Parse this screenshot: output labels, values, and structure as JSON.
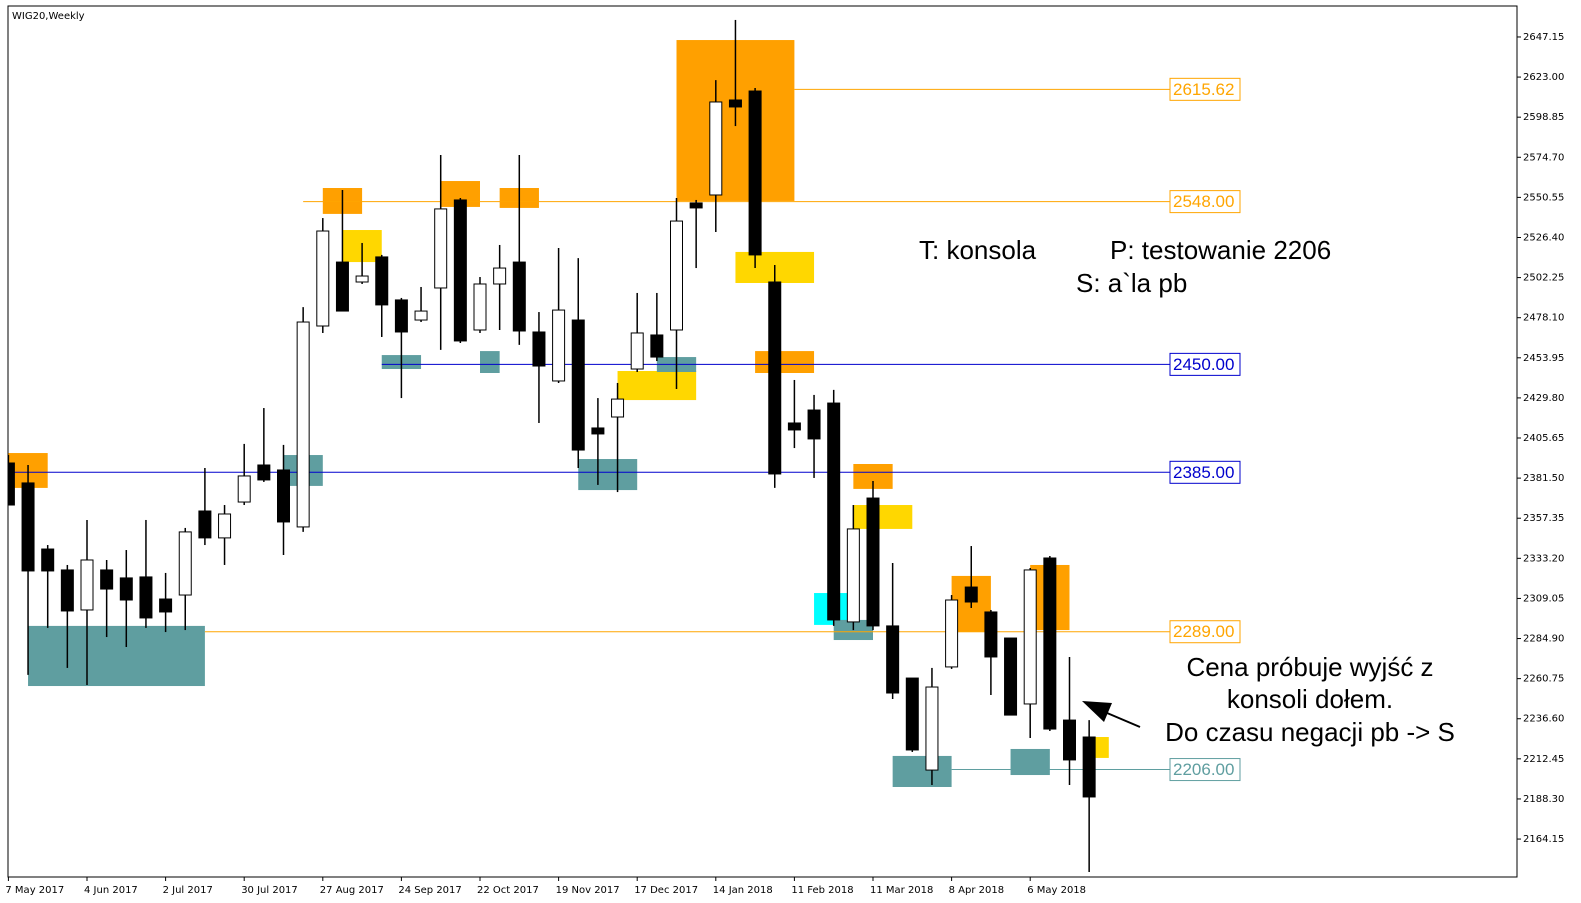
{
  "chart_data": {
    "type": "candlestick",
    "title": "WIG20,Weekly",
    "categories": [
      "7 May 2017",
      null,
      null,
      null,
      "4 Jun 2017",
      null,
      null,
      null,
      "2 Jul 2017",
      null,
      null,
      null,
      "30 Jul 2017",
      null,
      null,
      null,
      "27 Aug 2017",
      null,
      null,
      null,
      "24 Sep 2017",
      null,
      null,
      null,
      "22 Oct 2017",
      null,
      null,
      null,
      "19 Nov 2017",
      null,
      null,
      null,
      "17 Dec 2017",
      null,
      null,
      null,
      "14 Jan 2018",
      null,
      null,
      null,
      "11 Feb 2018",
      null,
      null,
      null,
      "11 Mar 2018",
      null,
      null,
      null,
      "8 Apr 2018",
      null,
      null,
      null,
      "6 May 2018",
      null,
      null,
      null
    ],
    "open": [
      2390.6,
      2378.6,
      2338.8,
      2326.2,
      2302.1,
      2326.2,
      2321.4,
      2322.0,
      2308.7,
      2311.1,
      2361.7,
      2345.5,
      2367.1,
      2389.4,
      2386.4,
      2352.1,
      2473.1,
      2511.6,
      2499.6,
      2514.7,
      2488.8,
      2476.7,
      2496.0,
      2549.0,
      2470.7,
      2498.4,
      2511.6,
      2469.5,
      2440.0,
      2476.7,
      2411.7,
      2418.3,
      2447.2,
      2467.7,
      2470.7,
      2547.2,
      2552.0,
      2609.2,
      2614.6,
      2499.6,
      2414.7,
      2422.5,
      2426.7,
      2294.9,
      2369.5,
      2292.5,
      2261.1,
      2205.7,
      2267.8,
      2315.9,
      2300.9,
      2285.2,
      2245.5,
      2333.4,
      2235.8,
      2225.6
    ],
    "high": [
      2395.4,
      2389.4,
      2341.2,
      2329.2,
      2356.3,
      2332.2,
      2338.2,
      2356.3,
      2324.4,
      2351.5,
      2387.6,
      2365.3,
      2402.1,
      2423.7,
      2401.5,
      2484.5,
      2538.1,
      2555.0,
      2523.1,
      2515.9,
      2490.0,
      2496.6,
      2576.1,
      2550.2,
      2502.6,
      2521.9,
      2576.1,
      2481.5,
      2520.1,
      2514.0,
      2429.7,
      2438.8,
      2493.0,
      2493.0,
      2550.2,
      2549.0,
      2621.2,
      2657.4,
      2616.4,
      2509.8,
      2440.6,
      2431.6,
      2434.6,
      2365.3,
      2379.8,
      2330.4,
      2261.1,
      2267.2,
      2311.1,
      2340.6,
      2302.1,
      2285.2,
      2327.4,
      2334.6,
      2273.8,
      2235.8
    ],
    "low": [
      2365.3,
      2263.0,
      2291.3,
      2267.2,
      2256.9,
      2285.8,
      2279.8,
      2291.3,
      2288.8,
      2290.0,
      2341.2,
      2329.2,
      2365.3,
      2379.2,
      2335.2,
      2349.1,
      2468.9,
      2482.1,
      2498.4,
      2466.5,
      2429.7,
      2475.5,
      2458.7,
      2462.9,
      2468.9,
      2470.7,
      2461.7,
      2414.7,
      2438.8,
      2387.6,
      2377.4,
      2373.1,
      2445.4,
      2452.0,
      2435.2,
      2508.0,
      2529.7,
      2593.5,
      2508.0,
      2375.6,
      2399.6,
      2381.6,
      2292.5,
      2290.0,
      2290.0,
      2248.5,
      2216.6,
      2196.7,
      2266.6,
      2303.3,
      2250.9,
      2238.8,
      2225.0,
      2229.2,
      2196.7,
      2144.3
    ],
    "close": [
      2365.3,
      2325.6,
      2325.6,
      2301.5,
      2332.2,
      2314.7,
      2308.1,
      2297.3,
      2300.9,
      2349.1,
      2345.5,
      2359.9,
      2382.8,
      2380.4,
      2355.1,
      2475.5,
      2530.3,
      2482.1,
      2503.2,
      2485.8,
      2469.5,
      2482.1,
      2543.6,
      2464.1,
      2498.4,
      2508.0,
      2470.1,
      2449.0,
      2482.7,
      2398.4,
      2408.1,
      2429.1,
      2468.9,
      2454.4,
      2536.3,
      2544.2,
      2608.0,
      2605.0,
      2515.9,
      2384.0,
      2410.5,
      2405.1,
      2296.1,
      2350.9,
      2292.5,
      2252.1,
      2217.8,
      2255.7,
      2308.1,
      2306.9,
      2273.8,
      2238.8,
      2326.2,
      2230.4,
      2211.8,
      2189.5
    ],
    "bull_color": "#ffffff",
    "bear_color": "#000000",
    "ylim": [
      2141.3,
      2665.8
    ],
    "yticks": [
      2647.15,
      {
        "value": 2623.0,
        "label": "2623.00"
      },
      2598.85,
      {
        "value": 2574.7,
        "label": "2574.70"
      },
      2550.55,
      {
        "value": 2526.4,
        "label": "2526.40"
      },
      2502.25,
      {
        "value": 2478.1,
        "label": "2478.10"
      },
      2453.95,
      {
        "value": 2429.8,
        "label": "2429.80"
      },
      2405.65,
      {
        "value": 2381.5,
        "label": "2381.50"
      },
      2357.35,
      {
        "value": 2333.2,
        "label": "2333.20"
      },
      2309.05,
      {
        "value": 2284.9,
        "label": "2284.90"
      },
      2260.75,
      {
        "value": 2236.6,
        "label": "2236.60"
      },
      2212.45,
      {
        "value": 2188.3,
        "label": "2188.30"
      },
      2164.15
    ],
    "zones": [
      {
        "start": 0,
        "end": 2,
        "top": 2396.6,
        "bottom": 2375.6,
        "color": "#ffa000"
      },
      {
        "start": 1,
        "end": 10,
        "top": 2292.5,
        "bottom": 2256.3,
        "color": "#5f9ea0"
      },
      {
        "start": 14,
        "end": 16,
        "top": 2395.4,
        "bottom": 2376.8,
        "color": "#5f9ea0"
      },
      {
        "start": 16,
        "end": 18,
        "top": 2556.2,
        "bottom": 2540.6,
        "color": "#ffa000"
      },
      {
        "start": 17,
        "end": 19,
        "top": 2530.9,
        "bottom": 2511.6,
        "color": "#ffd700"
      },
      {
        "start": 19,
        "end": 21,
        "top": 2455.6,
        "bottom": 2447.2,
        "color": "#5f9ea0"
      },
      {
        "start": 22,
        "end": 24,
        "top": 2560.4,
        "bottom": 2544.8,
        "color": "#ffa000"
      },
      {
        "start": 24,
        "end": 25,
        "top": 2458.0,
        "bottom": 2444.8,
        "color": "#5f9ea0"
      },
      {
        "start": 25,
        "end": 27,
        "top": 2556.2,
        "bottom": 2544.2,
        "color": "#ffa000"
      },
      {
        "start": 29,
        "end": 32,
        "top": 2393.0,
        "bottom": 2374.3,
        "color": "#5f9ea0"
      },
      {
        "start": 31,
        "end": 35,
        "top": 2446.0,
        "bottom": 2428.5,
        "color": "#ffd700"
      },
      {
        "start": 33,
        "end": 35,
        "top": 2454.4,
        "bottom": 2445.4,
        "color": "#5f9ea0"
      },
      {
        "start": 34,
        "end": 40,
        "top": 2645.3,
        "bottom": 2548.4,
        "color": "#ffa000"
      },
      {
        "start": 37,
        "end": 41,
        "top": 2517.7,
        "bottom": 2499.0,
        "color": "#ffd700"
      },
      {
        "start": 38,
        "end": 41,
        "top": 2458.0,
        "bottom": 2444.8,
        "color": "#ffa000"
      },
      {
        "start": 41,
        "end": 43,
        "top": 2312.3,
        "bottom": 2293.1,
        "color": "#00ffff"
      },
      {
        "start": 42,
        "end": 44,
        "top": 2296.1,
        "bottom": 2284.0,
        "color": "#5f9ea0"
      },
      {
        "start": 43,
        "end": 45,
        "top": 2390.0,
        "bottom": 2375.0,
        "color": "#ffa000"
      },
      {
        "start": 43,
        "end": 46,
        "top": 2365.3,
        "bottom": 2350.9,
        "color": "#ffd700"
      },
      {
        "start": 45,
        "end": 48,
        "top": 2214.2,
        "bottom": 2195.5,
        "color": "#5f9ea0"
      },
      {
        "start": 48,
        "end": 50,
        "top": 2322.6,
        "bottom": 2288.8,
        "color": "#ffa000"
      },
      {
        "start": 51,
        "end": 53,
        "top": 2218.4,
        "bottom": 2202.7,
        "color": "#5f9ea0"
      },
      {
        "start": 52,
        "end": 54,
        "top": 2329.2,
        "bottom": 2290.0,
        "color": "#ffa000"
      },
      {
        "start": 55,
        "end": 56,
        "top": 2225.6,
        "bottom": 2213.0,
        "color": "#ffd700"
      }
    ],
    "levels": [
      {
        "value": 2615.62,
        "label": "2615.62",
        "color": "#ffa500",
        "start": 40
      },
      {
        "value": 2548.0,
        "label": "2548.00",
        "color": "#ffa500",
        "start": 15
      },
      {
        "value": 2450.0,
        "label": "2450.00",
        "color": "#0000cd",
        "start": 19
      },
      {
        "value": 2385.0,
        "label": "2385.00",
        "color": "#0000cd",
        "start": 0
      },
      {
        "value": 2289.0,
        "label": "2289.00",
        "color": "#ffa500",
        "start": 10
      },
      {
        "value": 2206.0,
        "label": "2206.00",
        "color": "#5f9ea0",
        "start": 48
      }
    ],
    "annotations": [
      "T: konsola",
      "P: testowanie 2206",
      "S: a`la pb",
      "Cena próbuje wyjść z",
      "konsoli dołem.",
      "Do czasu negacji pb -> S"
    ]
  }
}
